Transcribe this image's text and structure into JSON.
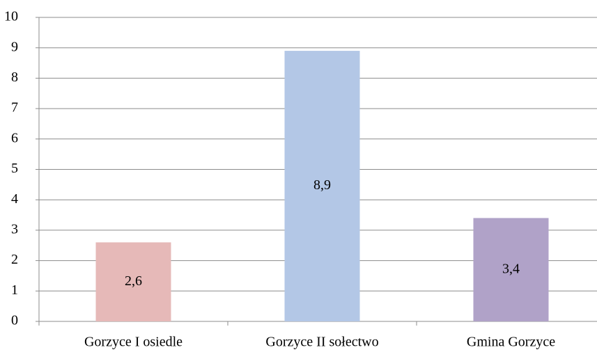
{
  "chart_data": {
    "type": "bar",
    "categories": [
      "Gorzyce I osiedle",
      "Gorzyce II sołectwo",
      "Gmina Gorzyce"
    ],
    "values": [
      2.6,
      8.9,
      3.4
    ],
    "value_labels": [
      "2,6",
      "8,9",
      "3,4"
    ],
    "colors": [
      "#e6b9b8",
      "#b3c7e6",
      "#b0a2c8"
    ],
    "ylim": [
      0,
      10
    ],
    "yticks": [
      0,
      1,
      2,
      3,
      4,
      5,
      6,
      7,
      8,
      9,
      10
    ],
    "grid": true
  }
}
